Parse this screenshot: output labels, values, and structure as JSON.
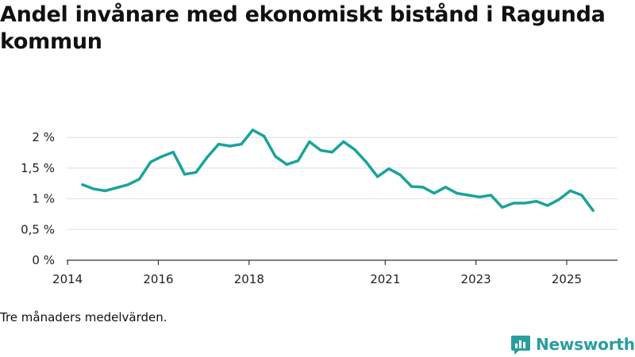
{
  "colors": {
    "line": "#1aa39a",
    "grid": "#dddddd",
    "axis": "#333333",
    "brand": "#2a9d9f"
  },
  "chart_data": {
    "type": "line",
    "title": "Andel invånare med ekonomiskt bistånd i Ragunda kommun",
    "xlabel": "",
    "ylabel": "",
    "xlim": [
      2013.98,
      2026.12
    ],
    "ylim": [
      0,
      2.3
    ],
    "x_ticks": [
      {
        "value": 2014,
        "label": "2014"
      },
      {
        "value": 2016,
        "label": "2016"
      },
      {
        "value": 2018,
        "label": "2018"
      },
      {
        "value": 2021,
        "label": "2021"
      },
      {
        "value": 2023,
        "label": "2023"
      },
      {
        "value": 2025,
        "label": "2025"
      }
    ],
    "y_ticks": [
      {
        "value": 0,
        "label": "0 %"
      },
      {
        "value": 0.5,
        "label": "0,5 %"
      },
      {
        "value": 1,
        "label": "1 %"
      },
      {
        "value": 1.5,
        "label": "1,5 %"
      },
      {
        "value": 2,
        "label": "2 %"
      }
    ],
    "grid": true,
    "series": [
      {
        "name": "Andel invånare med ekonomiskt bistånd",
        "x": [
          2014.33,
          2014.58,
          2014.83,
          2015.08,
          2015.33,
          2015.58,
          2015.83,
          2016.08,
          2016.33,
          2016.58,
          2016.83,
          2017.08,
          2017.33,
          2017.58,
          2017.83,
          2018.08,
          2018.33,
          2018.58,
          2018.83,
          2019.08,
          2019.33,
          2019.58,
          2019.83,
          2020.08,
          2020.33,
          2020.58,
          2020.83,
          2021.08,
          2021.33,
          2021.58,
          2021.83,
          2022.08,
          2022.33,
          2022.58,
          2022.83,
          2023.08,
          2023.33,
          2023.58,
          2023.83,
          2024.08,
          2024.33,
          2024.58,
          2024.83,
          2025.08,
          2025.33,
          2025.58
        ],
        "values": [
          1.23,
          1.16,
          1.13,
          1.18,
          1.23,
          1.32,
          1.6,
          1.69,
          1.76,
          1.4,
          1.43,
          1.68,
          1.89,
          1.86,
          1.89,
          2.12,
          2.02,
          1.69,
          1.56,
          1.62,
          1.93,
          1.79,
          1.76,
          1.93,
          1.8,
          1.6,
          1.36,
          1.49,
          1.39,
          1.2,
          1.19,
          1.09,
          1.19,
          1.09,
          1.06,
          1.03,
          1.06,
          0.86,
          0.93,
          0.93,
          0.96,
          0.89,
          0.99,
          1.13,
          1.06,
          0.81
        ]
      }
    ]
  },
  "caption": "Tre månaders medelvärden.",
  "brand": {
    "name": "Newsworthy",
    "icon": "newsworthy-logo-icon"
  }
}
